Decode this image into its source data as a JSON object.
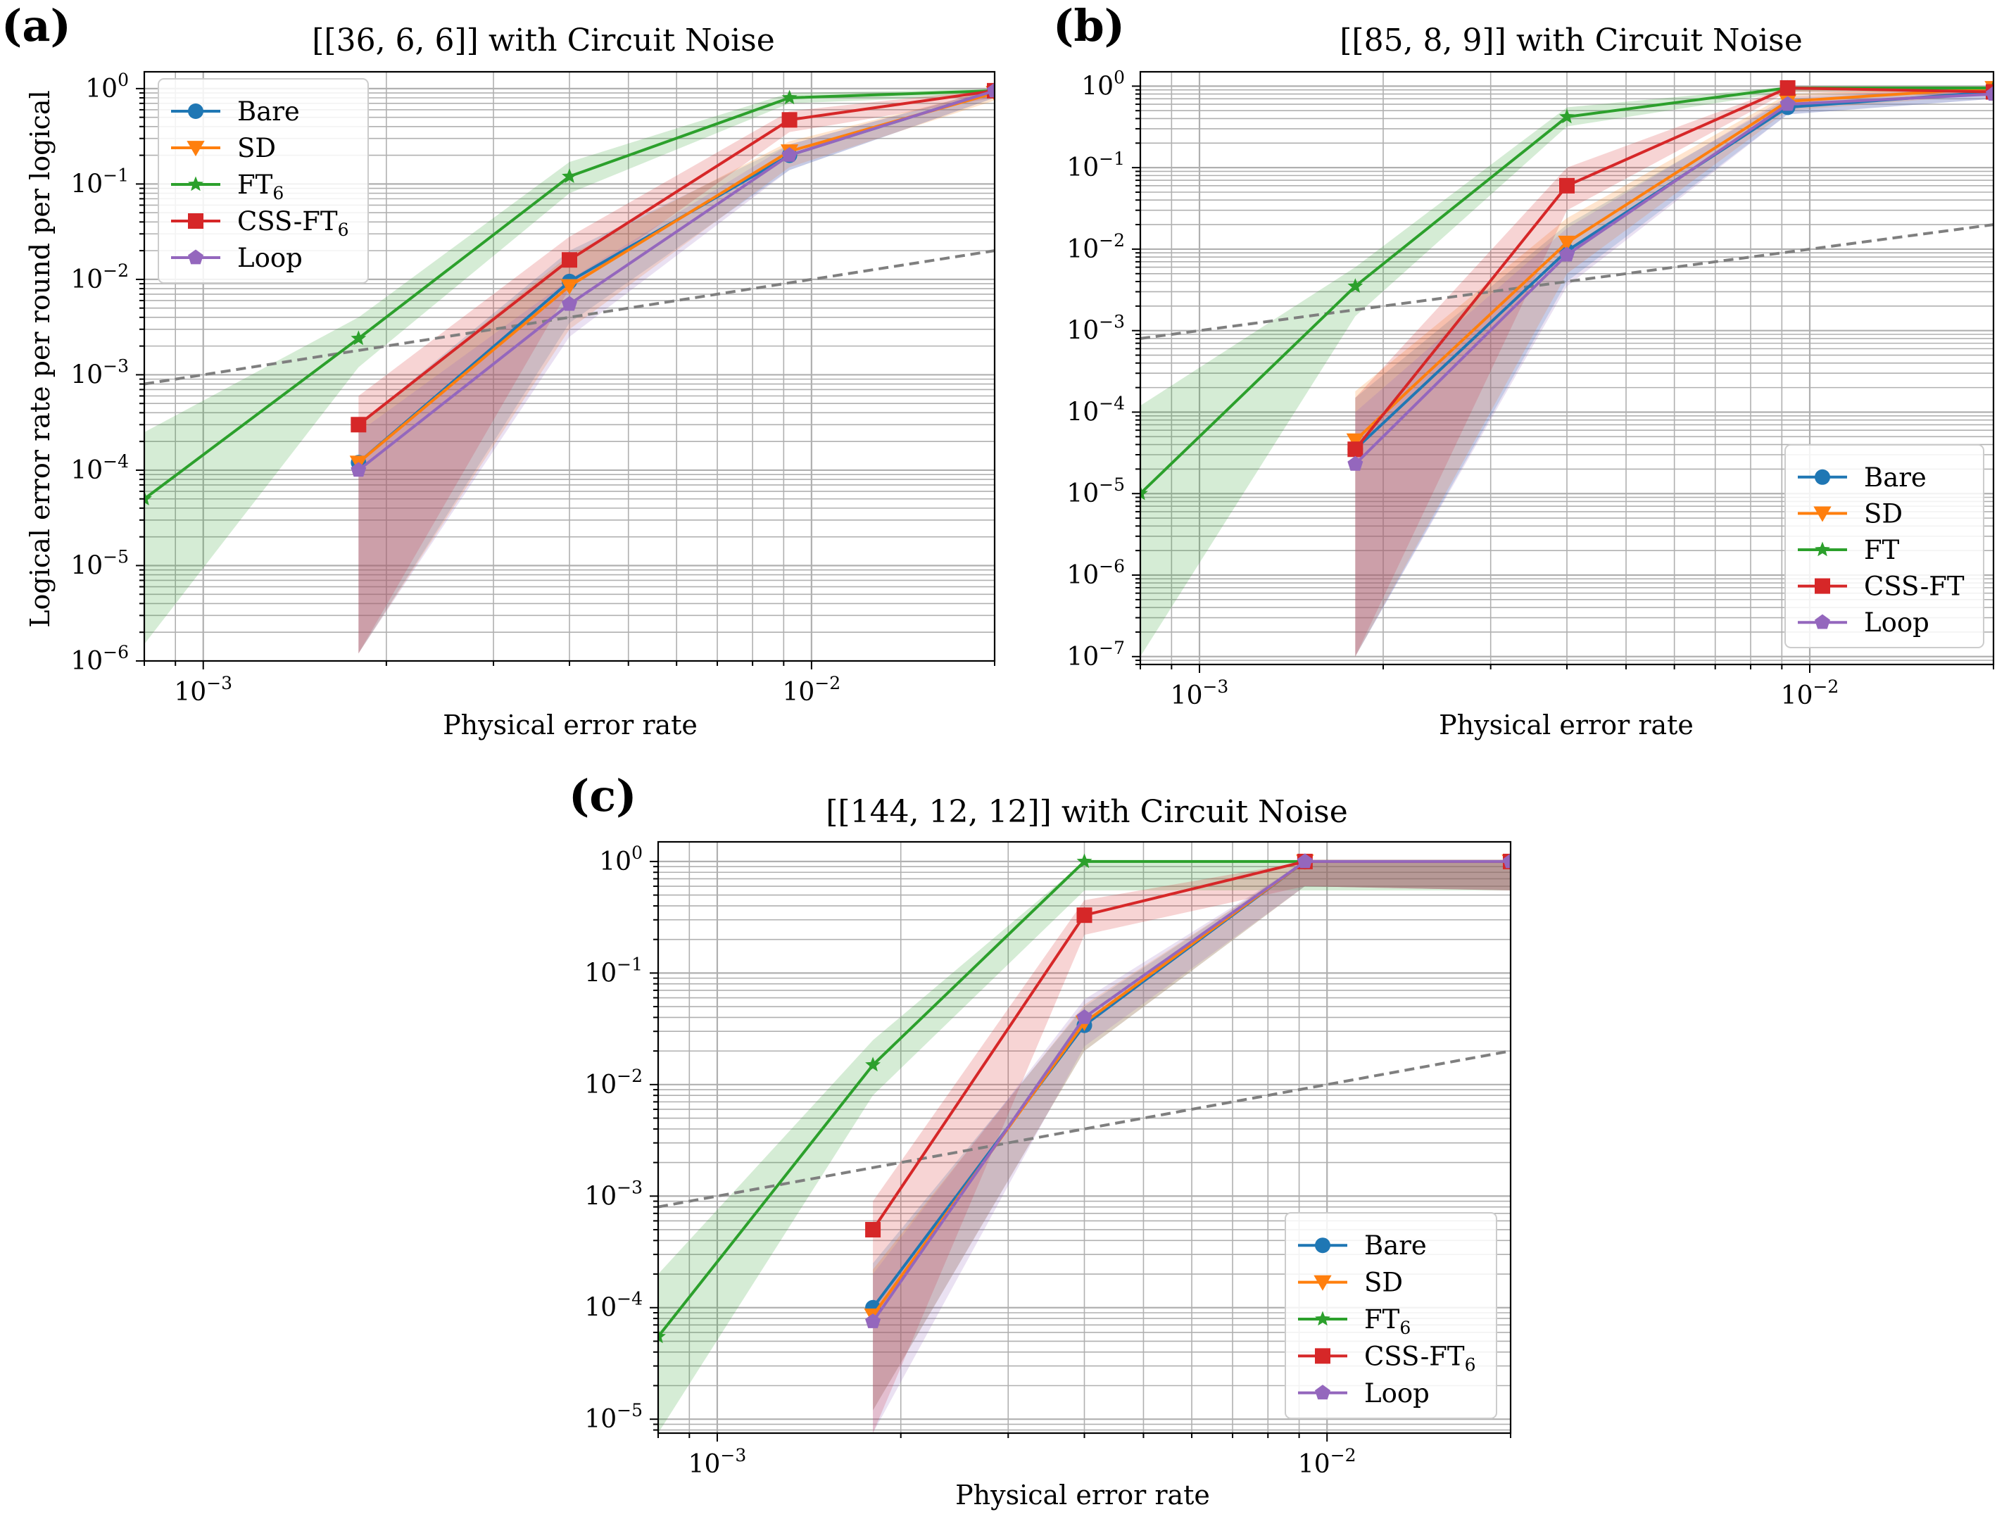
{
  "figure": {
    "xlabel_common": "Physical error rate",
    "ylabel_common": "Logical error rate per round per logical"
  },
  "chart_data": [
    {
      "type": "line",
      "panel": "(a)",
      "title": "[[36, 6, 6]] with Circuit Noise",
      "xlabel": "Physical error rate",
      "ylabel": "Logical error rate per round per logical",
      "xscale": "log",
      "yscale": "log",
      "xlim": [
        0.0008,
        0.02
      ],
      "ylim": [
        1e-06,
        1.5
      ],
      "grid": true,
      "legend_position": "upper-left",
      "x_ticks": [
        {
          "exp": "-3"
        },
        {
          "exp": "-2"
        }
      ],
      "y_ticks": [
        {
          "exp": "0"
        },
        {
          "exp": "-1"
        },
        {
          "exp": "-2"
        },
        {
          "exp": "-3"
        },
        {
          "exp": "-4"
        },
        {
          "exp": "-5"
        },
        {
          "exp": "-6"
        }
      ],
      "reference_line": {
        "style": "dashed",
        "color": "#7f7f7f",
        "points": [
          [
            0.0008,
            0.0008
          ],
          [
            0.02,
            0.02
          ]
        ]
      },
      "series": [
        {
          "name": "Bare",
          "name_sub": "",
          "color": "#1f77b4",
          "marker": "circle",
          "x": [
            0.0018,
            0.004,
            0.0092,
            0.02
          ],
          "y": [
            0.00012,
            0.0095,
            0.2,
            0.95
          ],
          "lower": [
            1.2e-06,
            0.0035,
            0.14,
            0.8
          ],
          "upper": [
            0.0003,
            0.02,
            0.26,
            0.99
          ]
        },
        {
          "name": "SD",
          "name_sub": "",
          "color": "#ff7f0e",
          "marker": "triangle-down",
          "x": [
            0.0018,
            0.004,
            0.0092,
            0.02
          ],
          "y": [
            0.00012,
            0.0085,
            0.22,
            0.9
          ],
          "lower": [
            1.2e-06,
            0.003,
            0.15,
            0.75
          ],
          "upper": [
            0.0003,
            0.018,
            0.28,
            0.98
          ]
        },
        {
          "name": "FT",
          "name_sub": "6",
          "color": "#2ca02c",
          "marker": "star",
          "x": [
            0.0008,
            0.0018,
            0.004,
            0.0092,
            0.02
          ],
          "y": [
            5e-05,
            0.0024,
            0.12,
            0.8,
            0.95
          ],
          "lower": [
            1.5e-06,
            0.0012,
            0.08,
            0.7,
            0.85
          ],
          "upper": [
            0.00025,
            0.004,
            0.17,
            0.9,
            0.99
          ]
        },
        {
          "name": "CSS-FT",
          "name_sub": "6",
          "color": "#d62728",
          "marker": "square",
          "x": [
            0.0018,
            0.004,
            0.0092,
            0.02
          ],
          "y": [
            0.0003,
            0.016,
            0.47,
            0.95
          ],
          "lower": [
            1.2e-06,
            0.008,
            0.35,
            0.8
          ],
          "upper": [
            0.0006,
            0.028,
            0.58,
            0.99
          ]
        },
        {
          "name": "Loop",
          "name_sub": "",
          "color": "#9467bd",
          "marker": "pentagon",
          "x": [
            0.0018,
            0.004,
            0.0092,
            0.02
          ],
          "y": [
            0.0001,
            0.0055,
            0.2,
            0.95
          ],
          "lower": [
            1.2e-06,
            0.0025,
            0.14,
            0.8
          ],
          "upper": [
            0.00025,
            0.01,
            0.26,
            0.99
          ]
        }
      ]
    },
    {
      "type": "line",
      "panel": "(b)",
      "title": "[[85, 8, 9]] with Circuit Noise",
      "xlabel": "Physical error rate",
      "ylabel": "",
      "xscale": "log",
      "yscale": "log",
      "xlim": [
        0.0008,
        0.02
      ],
      "ylim": [
        8e-08,
        1.5
      ],
      "grid": true,
      "legend_position": "lower-right",
      "x_ticks": [
        {
          "exp": "-3"
        },
        {
          "exp": "-2"
        }
      ],
      "y_ticks": [
        {
          "exp": "0"
        },
        {
          "exp": "-1"
        },
        {
          "exp": "-2"
        },
        {
          "exp": "-3"
        },
        {
          "exp": "-4"
        },
        {
          "exp": "-5"
        },
        {
          "exp": "-6"
        },
        {
          "exp": "-7"
        }
      ],
      "reference_line": {
        "style": "dashed",
        "color": "#7f7f7f",
        "points": [
          [
            0.0008,
            0.0008
          ],
          [
            0.02,
            0.02
          ]
        ]
      },
      "series": [
        {
          "name": "Bare",
          "name_sub": "",
          "color": "#1f77b4",
          "marker": "circle",
          "x": [
            0.0018,
            0.004,
            0.0092,
            0.02
          ],
          "y": [
            3.5e-05,
            0.0095,
            0.55,
            0.85
          ],
          "lower": [
            1e-07,
            0.004,
            0.45,
            0.7
          ],
          "upper": [
            0.00015,
            0.02,
            0.7,
            0.98
          ]
        },
        {
          "name": "SD",
          "name_sub": "",
          "color": "#ff7f0e",
          "marker": "triangle-down",
          "x": [
            0.0018,
            0.004,
            0.0092,
            0.02
          ],
          "y": [
            4.5e-05,
            0.012,
            0.65,
            0.95
          ],
          "lower": [
            1e-07,
            0.005,
            0.5,
            0.8
          ],
          "upper": [
            0.00018,
            0.024,
            0.8,
            0.99
          ]
        },
        {
          "name": "FT",
          "name_sub": "",
          "color": "#2ca02c",
          "marker": "star",
          "x": [
            0.0008,
            0.0018,
            0.004,
            0.0092,
            0.02
          ],
          "y": [
            1e-05,
            0.0035,
            0.42,
            0.95,
            0.95
          ],
          "lower": [
            1e-07,
            0.0015,
            0.32,
            0.85,
            0.85
          ],
          "upper": [
            0.00012,
            0.006,
            0.55,
            0.99,
            0.99
          ]
        },
        {
          "name": "CSS-FT",
          "name_sub": "",
          "color": "#d62728",
          "marker": "square",
          "x": [
            0.0018,
            0.004,
            0.0092,
            0.02
          ],
          "y": [
            3.5e-05,
            0.06,
            0.95,
            0.85
          ],
          "lower": [
            1e-07,
            0.03,
            0.85,
            0.75
          ],
          "upper": [
            0.00015,
            0.1,
            0.99,
            0.98
          ]
        },
        {
          "name": "Loop",
          "name_sub": "",
          "color": "#9467bd",
          "marker": "pentagon",
          "x": [
            0.0018,
            0.004,
            0.0092,
            0.02
          ],
          "y": [
            2.3e-05,
            0.0085,
            0.6,
            0.8
          ],
          "lower": [
            1e-07,
            0.0035,
            0.45,
            0.7
          ],
          "upper": [
            0.0001,
            0.018,
            0.75,
            0.95
          ]
        }
      ]
    },
    {
      "type": "line",
      "panel": "(c)",
      "title": "[[144, 12, 12]] with Circuit Noise",
      "xlabel": "Physical error rate",
      "ylabel": "",
      "xscale": "log",
      "yscale": "log",
      "xlim": [
        0.0008,
        0.02
      ],
      "ylim": [
        7.5e-06,
        1.5
      ],
      "grid": true,
      "legend_position": "lower-right",
      "x_ticks": [
        {
          "exp": "-3"
        },
        {
          "exp": "-2"
        }
      ],
      "y_ticks": [
        {
          "exp": "0"
        },
        {
          "exp": "-1"
        },
        {
          "exp": "-2"
        },
        {
          "exp": "-3"
        },
        {
          "exp": "-4"
        },
        {
          "exp": "-5"
        }
      ],
      "reference_line": {
        "style": "dashed",
        "color": "#7f7f7f",
        "points": [
          [
            0.0008,
            0.0008
          ],
          [
            0.02,
            0.02
          ]
        ]
      },
      "series": [
        {
          "name": "Bare",
          "name_sub": "",
          "color": "#1f77b4",
          "marker": "circle",
          "x": [
            0.0018,
            0.004,
            0.0092,
            0.02
          ],
          "y": [
            0.0001,
            0.034,
            1.0,
            1.0
          ],
          "lower": [
            1.2e-05,
            0.02,
            0.6,
            0.55
          ],
          "upper": [
            0.00025,
            0.05,
            1.0,
            1.0
          ]
        },
        {
          "name": "SD",
          "name_sub": "",
          "color": "#ff7f0e",
          "marker": "triangle-down",
          "x": [
            0.0018,
            0.004,
            0.0092,
            0.02
          ],
          "y": [
            8.5e-05,
            0.036,
            1.0,
            1.0
          ],
          "lower": [
            1.2e-05,
            0.02,
            0.6,
            0.55
          ],
          "upper": [
            0.00022,
            0.052,
            1.0,
            1.0
          ]
        },
        {
          "name": "FT",
          "name_sub": "6",
          "color": "#2ca02c",
          "marker": "star",
          "x": [
            0.0008,
            0.0018,
            0.004,
            0.0092,
            0.02
          ],
          "y": [
            5.5e-05,
            0.015,
            1.0,
            1.0,
            1.0
          ],
          "lower": [
            7.5e-06,
            0.008,
            0.55,
            0.55,
            0.55
          ],
          "upper": [
            0.0002,
            0.025,
            1.0,
            1.0,
            1.0
          ]
        },
        {
          "name": "CSS-FT",
          "name_sub": "6",
          "color": "#d62728",
          "marker": "square",
          "x": [
            0.0018,
            0.004,
            0.0092,
            0.02
          ],
          "y": [
            0.0005,
            0.33,
            1.0,
            1.0
          ],
          "lower": [
            7.5e-06,
            0.22,
            0.6,
            0.55
          ],
          "upper": [
            0.0009,
            0.45,
            1.0,
            1.0
          ]
        },
        {
          "name": "Loop",
          "name_sub": "",
          "color": "#9467bd",
          "marker": "pentagon",
          "x": [
            0.0018,
            0.004,
            0.0092,
            0.02
          ],
          "y": [
            7.5e-05,
            0.04,
            1.0,
            1.0
          ],
          "lower": [
            7.5e-06,
            0.022,
            0.6,
            0.55
          ],
          "upper": [
            0.0002,
            0.058,
            1.0,
            1.0
          ]
        }
      ]
    }
  ]
}
